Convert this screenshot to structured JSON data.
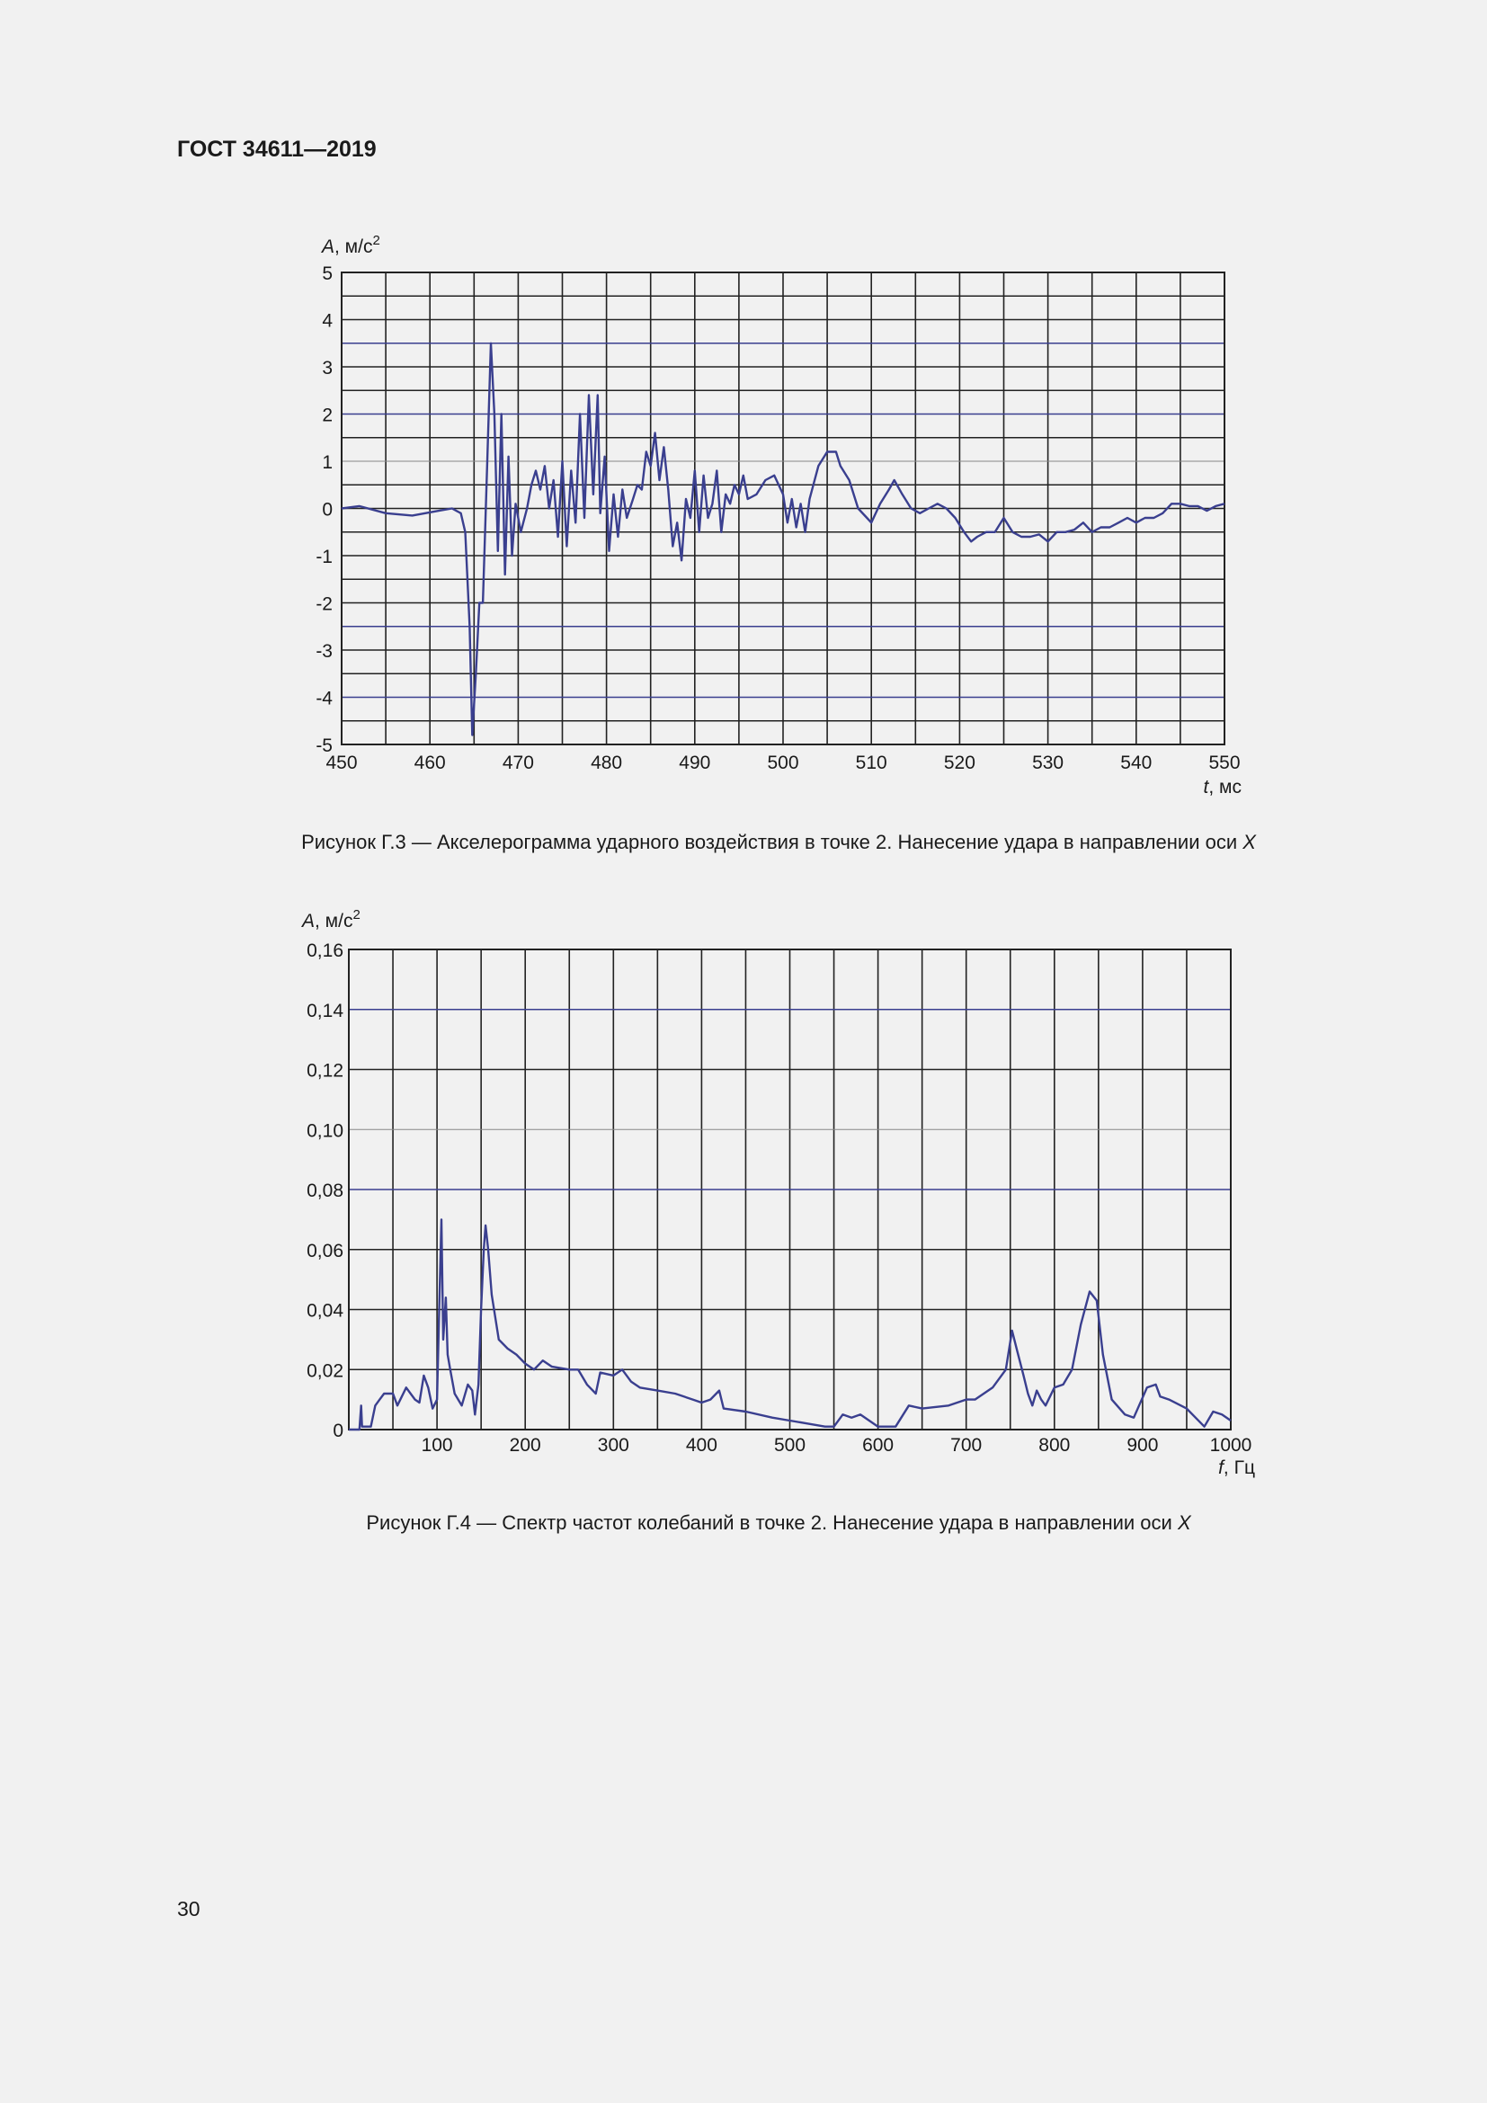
{
  "header": {
    "title": "ГОСТ 34611—2019"
  },
  "page_number": "30",
  "figures": [
    {
      "caption": "Рисунок Г.3 — Акселерограмма ударного воздействия в точке 2. Нанесение удара в направлении оси ",
      "caption_axis": "X"
    },
    {
      "caption": "Рисунок Г.4 — Спектр частот колебаний в точке 2. Нанесение удара в направлении оси ",
      "caption_axis": "X"
    }
  ],
  "colors": {
    "line": "#3a3f8f",
    "grid": "#222222",
    "grid_highlight": "#3a3f8f",
    "background": "#f1f1f1"
  },
  "chart_data": [
    {
      "type": "line",
      "ylabel_var": "A",
      "ylabel_unit": ", м/с",
      "ylabel_sup": "2",
      "xlabel_var": "t",
      "xlabel_unit": ", мс",
      "xlim": [
        450,
        550
      ],
      "ylim": [
        -5,
        5
      ],
      "grid": true,
      "xticks": [
        "450",
        "460",
        "470",
        "480",
        "490",
        "500",
        "510",
        "520",
        "530",
        "540",
        "550"
      ],
      "yticks": [
        "-5",
        "-4",
        "-3",
        "-2",
        "-1",
        "0",
        "1",
        "2",
        "3",
        "4",
        "5"
      ],
      "x": [
        450,
        452,
        455,
        458,
        461,
        462.5,
        463.5,
        464,
        464.5,
        464.8,
        465.2,
        465.6,
        466,
        466.5,
        466.9,
        467.3,
        467.7,
        468.1,
        468.5,
        468.9,
        469.3,
        469.7,
        470.3,
        471,
        471.5,
        472,
        472.5,
        473,
        473.5,
        474,
        474.5,
        475,
        475.5,
        476,
        476.5,
        477,
        477.5,
        478,
        478.5,
        479,
        479.3,
        479.8,
        480.3,
        480.8,
        481.3,
        481.8,
        482.3,
        483,
        483.5,
        484,
        484.5,
        485,
        485.5,
        486,
        486.5,
        487,
        487.5,
        488,
        488.5,
        489,
        489.5,
        490,
        490.5,
        491,
        491.5,
        492,
        492.5,
        493,
        493.5,
        494,
        494.5,
        495,
        495.5,
        496,
        497,
        498,
        499,
        500,
        500.5,
        501,
        501.5,
        502,
        502.5,
        503,
        504,
        505,
        506,
        506.5,
        507.5,
        508.5,
        509.5,
        510,
        511,
        512,
        512.6,
        513.5,
        514.5,
        515.5,
        516.5,
        517.5,
        518.5,
        519.5,
        520.5,
        521.3,
        522,
        523,
        524,
        525,
        526,
        527,
        528,
        529,
        530,
        531,
        532,
        533,
        534,
        535,
        536,
        537,
        538,
        539,
        540,
        541,
        542,
        543,
        544,
        545,
        546,
        547,
        548,
        549,
        550
      ],
      "y": [
        0,
        0.05,
        -0.1,
        -0.15,
        -0.05,
        0,
        -0.1,
        -0.5,
        -2.5,
        -4.8,
        -3.5,
        -2,
        -2,
        1,
        3.5,
        2,
        -0.9,
        2,
        -1.4,
        1.1,
        -1,
        0.1,
        -0.5,
        0,
        0.5,
        0.8,
        0.4,
        0.9,
        0,
        0.6,
        -0.6,
        1,
        -0.8,
        0.8,
        -0.3,
        2,
        -0.2,
        2.4,
        0.3,
        2.4,
        -0.1,
        1.1,
        -0.9,
        0.3,
        -0.6,
        0.4,
        -0.2,
        0.2,
        0.5,
        0.4,
        1.2,
        0.9,
        1.6,
        0.6,
        1.3,
        0.4,
        -0.8,
        -0.3,
        -1.1,
        0.2,
        -0.2,
        0.8,
        -0.5,
        0.7,
        -0.2,
        0.1,
        0.8,
        -0.5,
        0.3,
        0.1,
        0.5,
        0.3,
        0.7,
        0.2,
        0.3,
        0.6,
        0.7,
        0.3,
        -0.3,
        0.2,
        -0.4,
        0.1,
        -0.5,
        0.2,
        0.9,
        1.2,
        1.2,
        0.9,
        0.6,
        0,
        -0.2,
        -0.3,
        0.1,
        0.4,
        0.6,
        0.3,
        0,
        -0.1,
        0,
        0.1,
        0,
        -0.2,
        -0.5,
        -0.7,
        -0.6,
        -0.5,
        -0.5,
        -0.2,
        -0.5,
        -0.6,
        -0.6,
        -0.55,
        -0.7,
        -0.5,
        -0.5,
        -0.45,
        -0.3,
        -0.5,
        -0.4,
        -0.4,
        -0.3,
        -0.2,
        -0.3,
        -0.2,
        -0.2,
        -0.1,
        0.1,
        0.1,
        0.05,
        0.05,
        -0.05,
        0.05,
        0.1
      ]
    },
    {
      "type": "line",
      "ylabel_var": "A",
      "ylabel_unit": ", м/с",
      "ylabel_sup": "2",
      "xlabel_var": "f",
      "xlabel_unit": ", Гц",
      "xlim": [
        0,
        1000
      ],
      "ylim": [
        0,
        0.16
      ],
      "grid": true,
      "xticks": [
        "",
        "100",
        "200",
        "300",
        "400",
        "500",
        "600",
        "700",
        "800",
        "900",
        "1000"
      ],
      "yticks": [
        "0",
        "0,02",
        "0,04",
        "0,06",
        "0,08",
        "0,10",
        "0,12",
        "0,14",
        "0,16"
      ],
      "x": [
        0,
        12,
        14,
        15,
        25,
        30,
        35,
        40,
        50,
        55,
        60,
        65,
        70,
        75,
        80,
        85,
        90,
        95,
        100,
        102,
        105,
        107,
        110,
        112,
        115,
        120,
        128,
        135,
        140,
        143,
        147,
        150,
        153,
        155,
        158,
        162,
        170,
        180,
        190,
        200,
        210,
        220,
        230,
        250,
        260,
        270,
        280,
        285,
        300,
        310,
        320,
        330,
        350,
        370,
        390,
        400,
        410,
        420,
        425,
        450,
        480,
        500,
        520,
        540,
        550,
        560,
        570,
        580,
        590,
        600,
        620,
        635,
        650,
        680,
        700,
        710,
        730,
        745,
        752,
        758,
        765,
        770,
        775,
        780,
        785,
        790,
        800,
        810,
        820,
        830,
        840,
        848,
        855,
        865,
        880,
        890,
        905,
        915,
        920,
        930,
        950,
        960,
        970,
        980,
        990,
        1000
      ],
      "y": [
        0,
        0,
        0.008,
        0.001,
        0.001,
        0.008,
        0.01,
        0.012,
        0.012,
        0.008,
        0.011,
        0.014,
        0.012,
        0.01,
        0.009,
        0.018,
        0.014,
        0.007,
        0.01,
        0.035,
        0.07,
        0.03,
        0.044,
        0.025,
        0.02,
        0.012,
        0.008,
        0.015,
        0.013,
        0.005,
        0.015,
        0.04,
        0.06,
        0.068,
        0.06,
        0.045,
        0.03,
        0.027,
        0.025,
        0.022,
        0.02,
        0.023,
        0.021,
        0.02,
        0.02,
        0.015,
        0.012,
        0.019,
        0.018,
        0.02,
        0.016,
        0.014,
        0.013,
        0.012,
        0.01,
        0.009,
        0.01,
        0.013,
        0.007,
        0.006,
        0.004,
        0.003,
        0.002,
        0.001,
        0.001,
        0.005,
        0.004,
        0.005,
        0.003,
        0.001,
        0.001,
        0.008,
        0.007,
        0.008,
        0.01,
        0.01,
        0.014,
        0.02,
        0.033,
        0.026,
        0.018,
        0.012,
        0.008,
        0.013,
        0.01,
        0.008,
        0.014,
        0.015,
        0.02,
        0.035,
        0.046,
        0.043,
        0.025,
        0.01,
        0.005,
        0.004,
        0.014,
        0.015,
        0.011,
        0.01,
        0.007,
        0.004,
        0.001,
        0.006,
        0.005,
        0.003
      ]
    }
  ]
}
